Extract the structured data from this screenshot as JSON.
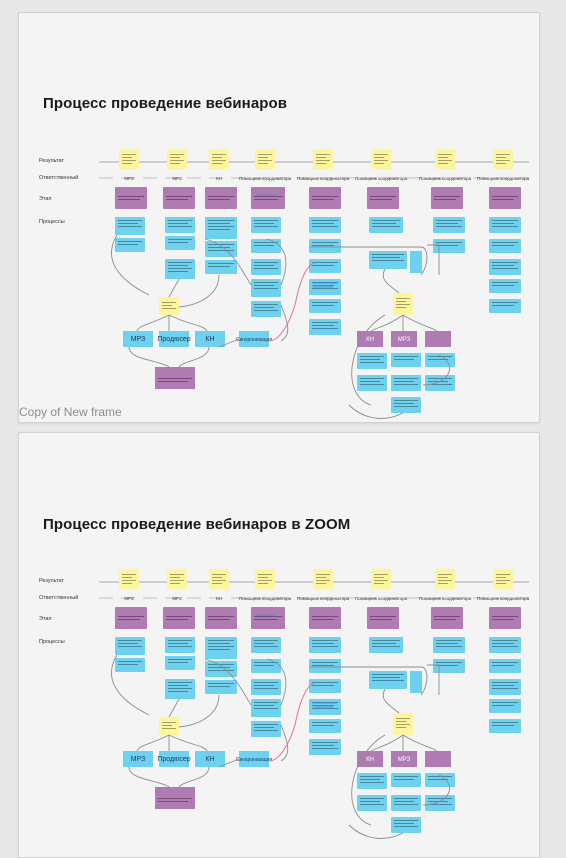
{
  "frames": [
    {
      "title": "Процесс проведение вебинаров",
      "label": "Copy of New frame"
    },
    {
      "title": "Процесс проведение вебинаров в ZOOM",
      "label": ""
    }
  ],
  "rows": {
    "result": "Результат",
    "responsible": "Ответственный",
    "stage": "Этап",
    "processes": "Процессы"
  },
  "diagram": {
    "yellow_notes": [
      "",
      "",
      "",
      "",
      "",
      "",
      "",
      ""
    ],
    "responsible": [
      "МРЗ",
      "МРЗ",
      "КН",
      "Помощник координатора",
      "Помощник координатора",
      "Помощник координатора",
      "Помощник координатора",
      "Помощник координатора"
    ],
    "stages": [
      "",
      "",
      "",
      "",
      "",
      "",
      "",
      ""
    ],
    "cyan_column_3": [
      "Организатор трансляции",
      "Отправка трансляций в",
      ""
    ],
    "cyan_column_5": [
      "Расписание",
      "Отправка",
      "",
      "Тестирование звука",
      "Старт вебинаров"
    ],
    "cyan_column_8": [
      "Обработка видео",
      "",
      "",
      "",
      ""
    ],
    "left_cyan": [
      "МРЗ",
      "Продюсер",
      "КН"
    ],
    "mid_cyan": "Синхронизация",
    "right_purple": [
      "КН",
      "МРЗ",
      ""
    ],
    "bottom_cyan": [
      "",
      "",
      "Запись трансляции",
      "Оценка вебинаров"
    ],
    "bottom_purple": ""
  },
  "colors": {
    "yellow": "#fdf59d",
    "purple": "#b07bb3",
    "cyan": "#6dd1ef",
    "line": "#8d8d8d",
    "pink": "#e07090",
    "blue": "#3f83d9"
  }
}
